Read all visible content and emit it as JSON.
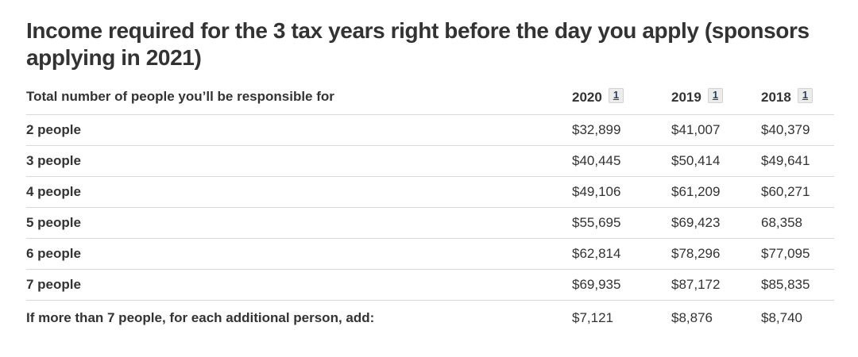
{
  "title": "Income required for the 3 tax years right before the day you apply (sponsors applying in 2021)",
  "colors": {
    "heading_text": "#333333",
    "body_text": "#333333",
    "footnote_link": "#284162",
    "footnote_bg": "#ececec",
    "row_separator": "#d9d9d9"
  },
  "table": {
    "header": {
      "label": "Total number of people you’ll be responsible for",
      "years": [
        {
          "label": "2020",
          "footnote": "1"
        },
        {
          "label": "2019",
          "footnote": "1"
        },
        {
          "label": "2018",
          "footnote": "1"
        }
      ]
    },
    "rows": [
      {
        "label": "2 people",
        "values": [
          "$32,899",
          "$41,007",
          "$40,379"
        ]
      },
      {
        "label": "3 people",
        "values": [
          "$40,445",
          "$50,414",
          "$49,641"
        ]
      },
      {
        "label": "4 people",
        "values": [
          "$49,106",
          "$61,209",
          "$60,271"
        ]
      },
      {
        "label": "5 people",
        "values": [
          "$55,695",
          "$69,423",
          "68,358"
        ]
      },
      {
        "label": "6 people",
        "values": [
          "$62,814",
          "$78,296",
          "$77,095"
        ]
      },
      {
        "label": "7 people",
        "values": [
          "$69,935",
          "$87,172",
          "$85,835"
        ]
      },
      {
        "label": "If more than 7 people, for each additional person, add:",
        "values": [
          "$7,121",
          "$8,876",
          "$8,740"
        ]
      }
    ]
  }
}
